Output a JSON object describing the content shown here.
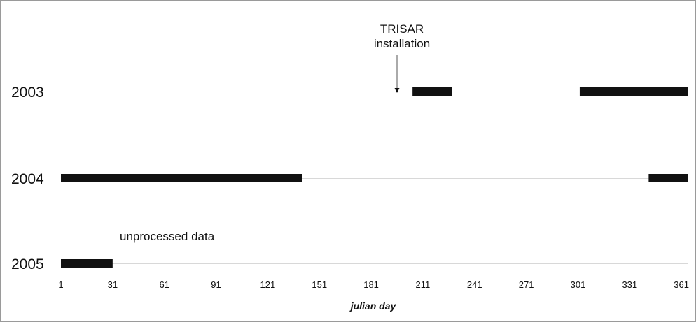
{
  "chart_data": {
    "type": "bar",
    "orientation": "horizontal",
    "xlabel": "julian day",
    "xlim": [
      1,
      365
    ],
    "x_ticks": [
      "1",
      "31",
      "61",
      "91",
      "121",
      "151",
      "181",
      "211",
      "241",
      "271",
      "301",
      "331",
      "361"
    ],
    "categories": [
      "2003",
      "2004",
      "2005"
    ],
    "series": [
      {
        "category": "2003",
        "intervals": [
          [
            205,
            228
          ],
          [
            302,
            365
          ]
        ]
      },
      {
        "category": "2004",
        "intervals": [
          [
            1,
            141
          ],
          [
            342,
            365
          ]
        ]
      },
      {
        "category": "2005",
        "intervals": [
          [
            1,
            31
          ]
        ]
      }
    ],
    "annotations": [
      {
        "text_lines": [
          "TRISAR",
          "installation"
        ],
        "x": 196,
        "row": "2003",
        "arrow": true
      },
      {
        "text": "unprocessed data",
        "row": "2005"
      }
    ],
    "colors": {
      "bar": "#111111",
      "guide_line": "#d8d8d8",
      "frame": "#9a9a9a"
    },
    "grid": false,
    "legend": "none"
  }
}
